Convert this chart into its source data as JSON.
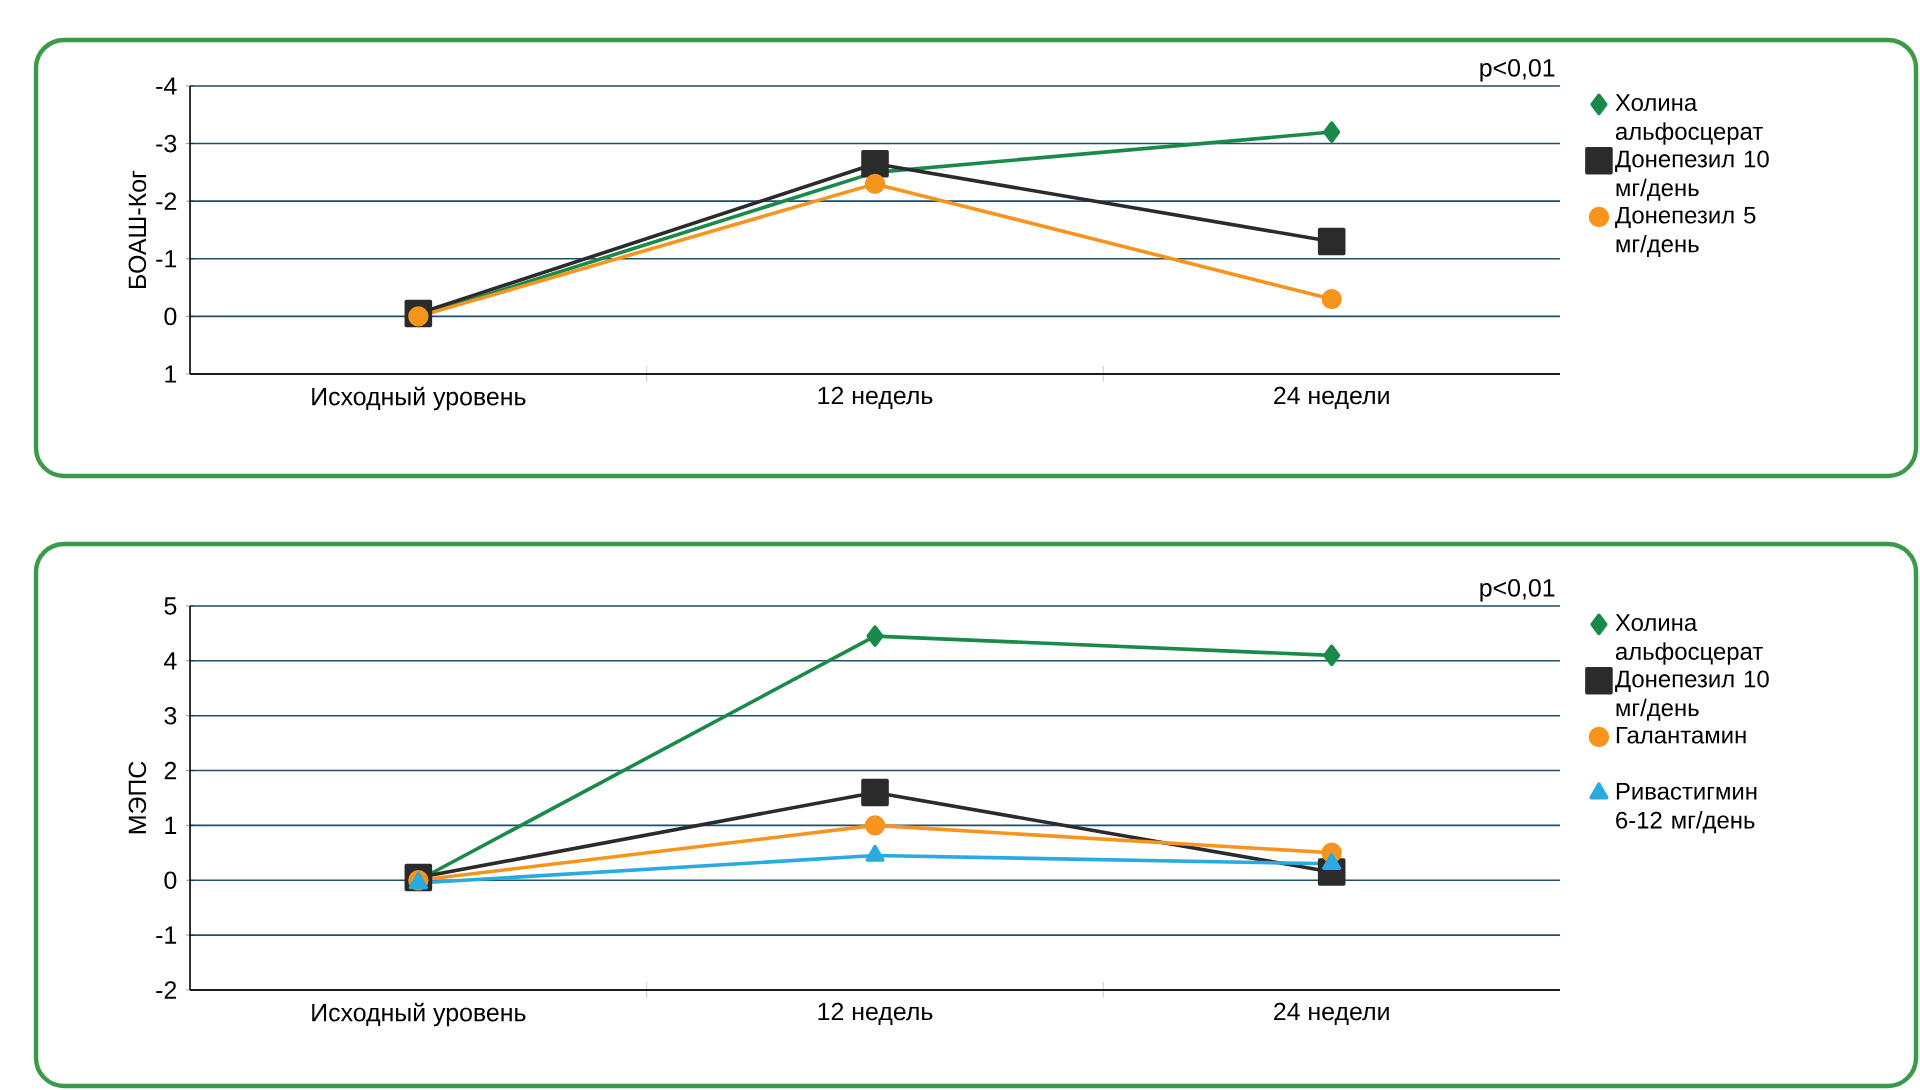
{
  "chart_data": [
    {
      "type": "line",
      "ylabel": "БОАШ-Ког",
      "categories": [
        "Исходный уровень",
        "12 недель",
        "24 недели"
      ],
      "ylim": [
        1,
        -4
      ],
      "yticks": [
        1,
        0,
        -1,
        -2,
        -3,
        -4
      ],
      "grid": "y",
      "legend": "right",
      "annotations": [
        "p<0,01"
      ],
      "series": [
        {
          "name": "Холина альфосцерат",
          "color": "#1a8a4a",
          "marker": "diamond",
          "values": [
            0,
            -2.5,
            -3.2
          ]
        },
        {
          "name": "Донепезил 10 мг/день",
          "color": "#2b2b2b",
          "marker": "square",
          "values": [
            -0.05,
            -2.65,
            -1.3
          ]
        },
        {
          "name": "Донепезил 5 мг/день",
          "color": "#f7941d",
          "marker": "circle",
          "values": [
            0,
            -2.3,
            -0.3
          ]
        }
      ]
    },
    {
      "type": "line",
      "ylabel": "МЭПС",
      "categories": [
        "Исходный уровень",
        "12 недель",
        "24 недели"
      ],
      "ylim": [
        -2,
        5
      ],
      "yticks": [
        -2,
        -1,
        0,
        1,
        2,
        3,
        4,
        5
      ],
      "grid": "y",
      "legend": "right",
      "annotations": [
        "p<0,01"
      ],
      "series": [
        {
          "name": "Холина альфосцерат",
          "color": "#1a8a4a",
          "marker": "diamond",
          "values": [
            0,
            4.45,
            4.1
          ]
        },
        {
          "name": "Донепезил 10 мг/день",
          "color": "#2b2b2b",
          "marker": "square",
          "values": [
            0.05,
            1.6,
            0.15
          ]
        },
        {
          "name": "Галантамин",
          "color": "#f7941d",
          "marker": "circle",
          "values": [
            0,
            1.0,
            0.5
          ]
        },
        {
          "name": "Ривастигмин 6-12 мг/день",
          "color": "#29abe2",
          "marker": "triangle",
          "values": [
            -0.05,
            0.45,
            0.3
          ]
        }
      ]
    }
  ]
}
